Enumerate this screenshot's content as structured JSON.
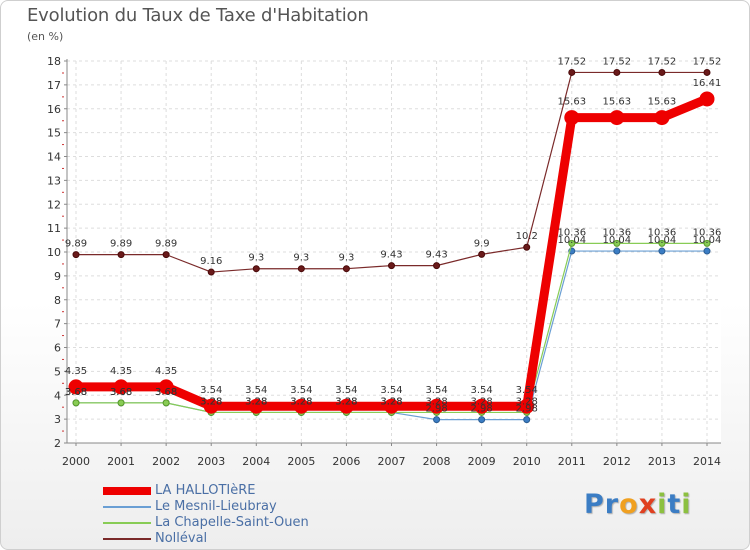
{
  "chart_data": {
    "type": "line",
    "title": "Evolution du Taux de Taxe d'Habitation",
    "unit_label": "(en %)",
    "x": [
      "2000",
      "2001",
      "2002",
      "2003",
      "2004",
      "2005",
      "2006",
      "2007",
      "2008",
      "2009",
      "2010",
      "2011",
      "2012",
      "2013",
      "2014"
    ],
    "ylim": [
      2,
      18
    ],
    "yticks": [
      2,
      3,
      4,
      5,
      6,
      7,
      8,
      9,
      10,
      11,
      12,
      13,
      14,
      15,
      16,
      17,
      18
    ],
    "grid": true,
    "legend_position": "bottom-left",
    "series": [
      {
        "name": "LA HALLOTIèRE",
        "color": "#ee0000",
        "values": [
          4.35,
          4.35,
          4.35,
          3.54,
          3.54,
          3.54,
          3.54,
          3.54,
          3.54,
          3.54,
          3.54,
          15.63,
          15.63,
          15.63,
          16.41
        ],
        "labels": [
          "4.35",
          "4.35",
          "4.35",
          "3.54",
          "3.54",
          "3.54",
          "3.54",
          "3.54",
          "3.54",
          "3.54",
          "3.54",
          "15.63",
          "15.63",
          "15.63",
          "16.41"
        ]
      },
      {
        "name": "Le Mesnil-Lieubray",
        "color": "#6a9fd4",
        "values": [
          3.68,
          3.68,
          3.68,
          3.28,
          3.28,
          3.28,
          3.28,
          3.28,
          2.98,
          2.98,
          2.98,
          10.04,
          10.04,
          10.04,
          10.04
        ],
        "labels": [
          "3.68",
          "3.68",
          "3.68",
          "3.28",
          "3.28",
          "3.28",
          "3.28",
          "3.28",
          "2.98",
          "2.98",
          "2.98",
          "10.04",
          "10.04",
          "10.04",
          "10.04"
        ]
      },
      {
        "name": "La Chapelle-Saint-Ouen",
        "color": "#88cc55",
        "values": [
          3.68,
          3.68,
          3.68,
          3.28,
          3.28,
          3.28,
          3.28,
          3.28,
          3.28,
          3.28,
          3.28,
          10.36,
          10.36,
          10.36,
          10.36
        ],
        "labels": [
          "3.68",
          "3.68",
          "3.68",
          "3.28",
          "3.28",
          "3.28",
          "3.28",
          "3.28",
          "3.28",
          "3.28",
          "3.28",
          "10.36",
          "10.36",
          "10.36",
          "10.36"
        ]
      },
      {
        "name": "Nolléval",
        "color": "#7a2a2a",
        "values": [
          9.89,
          9.89,
          9.89,
          9.16,
          9.3,
          9.3,
          9.3,
          9.43,
          9.43,
          9.9,
          10.2,
          17.52,
          17.52,
          17.52,
          17.52
        ],
        "labels": [
          "9.89",
          "9.89",
          "9.89",
          "9.16",
          "9.3",
          "9.3",
          "9.3",
          "9.43",
          "9.43",
          "9.9",
          "10.2",
          "17.52",
          "17.52",
          "17.52",
          "17.52"
        ]
      }
    ]
  },
  "legend": {
    "items": [
      "LA HALLOTIèRE",
      "Le Mesnil-Lieubray",
      "La Chapelle-Saint-Ouen",
      "Nolléval"
    ]
  },
  "brand": {
    "name": "Proxiti",
    "letters": [
      "P",
      "r",
      "o",
      "x",
      "i",
      "t",
      "i"
    ],
    "colors": [
      "#3b7dc4",
      "#3b7dc4",
      "#f0a020",
      "#e04020",
      "#8cc040",
      "#3b7dc4",
      "#8cc040"
    ]
  }
}
